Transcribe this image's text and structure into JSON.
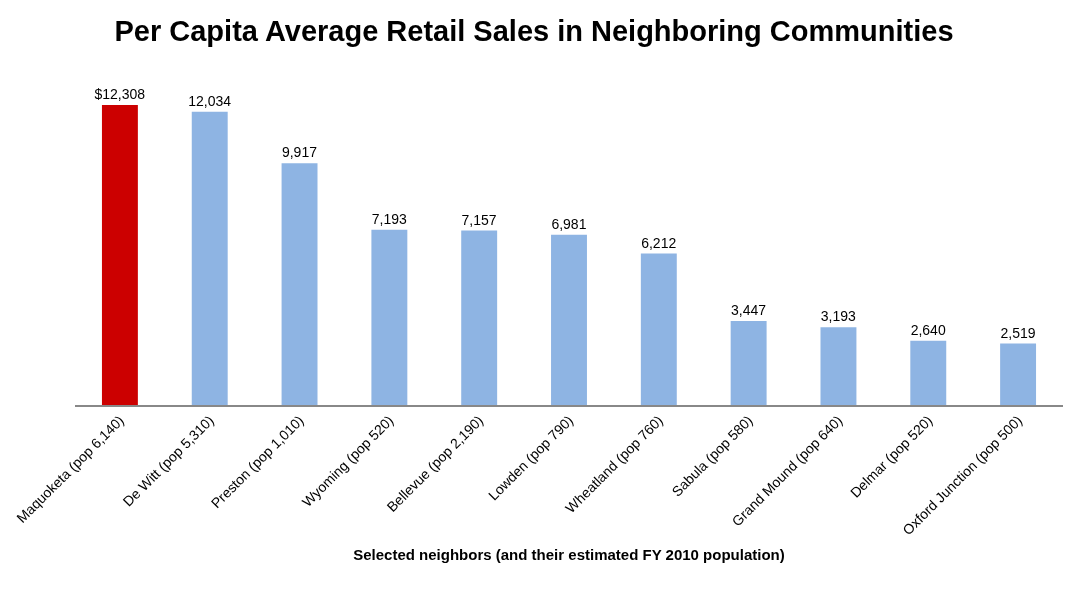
{
  "chart_data": {
    "type": "bar",
    "title": "Per Capita Average Retail Sales in Neighboring Communities",
    "xlabel": "Selected neighbors (and their estimated FY 2010 population)",
    "categories": [
      "Maquoketa (pop 6,140)",
      "De Witt (pop 5,310)",
      "Preston (pop 1,010)",
      "Wyoming (pop 520)",
      "Bellevue (pop 2,190)",
      "Lowden (pop 790)",
      "Wheatland (pop 760)",
      "Sabula (pop 580)",
      "Grand Mound (pop 640)",
      "Delmar (pop 520)",
      "Oxford Junction (pop 500)"
    ],
    "values": [
      12308,
      12034,
      9917,
      7193,
      7157,
      6981,
      6212,
      3447,
      3193,
      2640,
      2519
    ],
    "colors": [
      "#cc0000",
      "#8eb4e3",
      "#8eb4e3",
      "#8eb4e3",
      "#8eb4e3",
      "#8eb4e3",
      "#8eb4e3",
      "#8eb4e3",
      "#8eb4e3",
      "#8eb4e3",
      "#8eb4e3"
    ],
    "value_labels": [
      "$12,308",
      "12,034",
      "9,917",
      "7,193",
      "7,157",
      "6,981",
      "6,212",
      "3,447",
      "3,193",
      "2,640",
      "2,519"
    ],
    "tick_labels": "x"
  }
}
